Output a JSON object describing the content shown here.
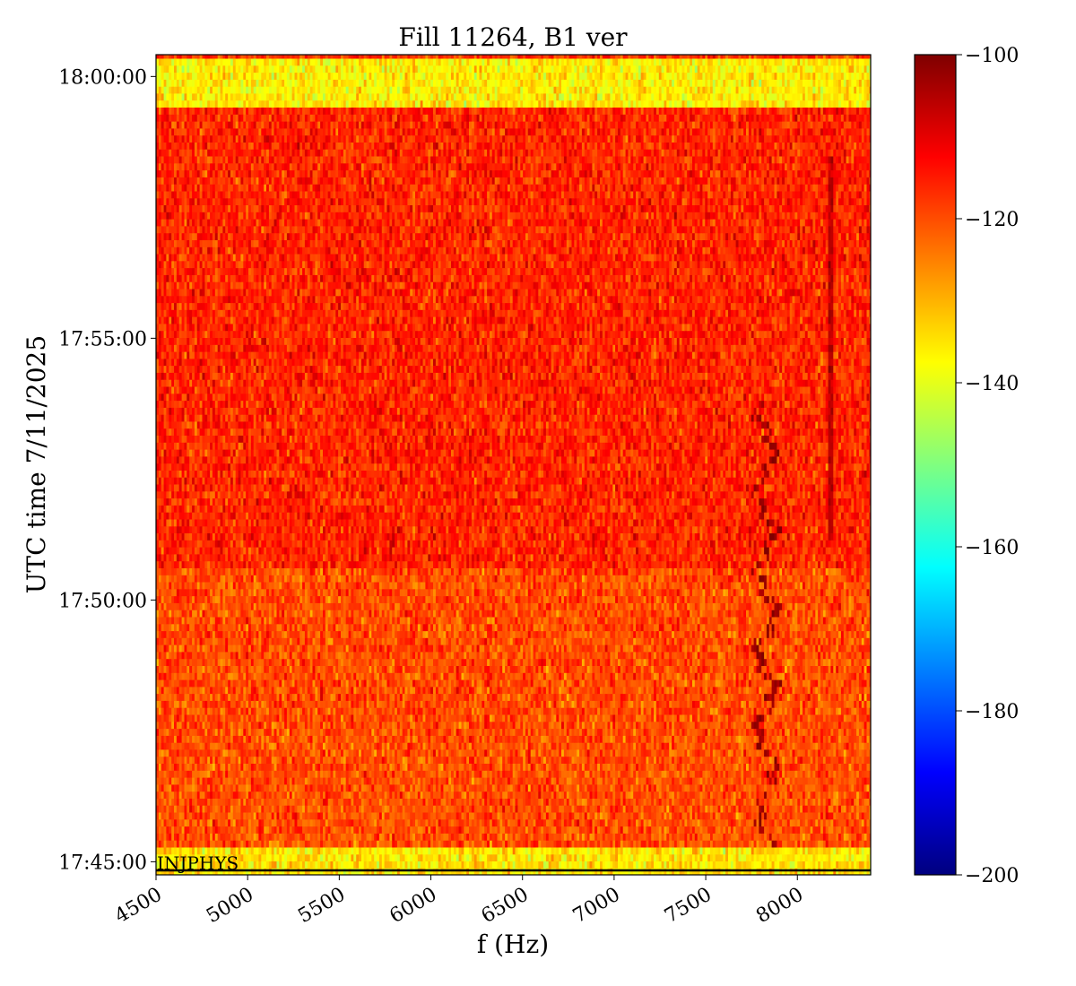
{
  "chart_data": {
    "type": "heatmap",
    "title": "Fill 11264, B1 ver",
    "xlabel": "f (Hz)",
    "ylabel": "UTC time 7/11/2025",
    "xlim": [
      4500,
      8400
    ],
    "ylim": [
      "17:44:45",
      "18:00:25"
    ],
    "x_ticks": [
      4500,
      5000,
      5500,
      6000,
      6500,
      7000,
      7500,
      8000
    ],
    "x_tick_labels": [
      "4500",
      "5000",
      "5500",
      "6000",
      "6500",
      "7000",
      "7500",
      "8000"
    ],
    "y_ticks": [
      "17:45:00",
      "17:50:00",
      "17:55:00",
      "18:00:00"
    ],
    "y_tick_labels": [
      "17:45:00",
      "17:50:00",
      "17:55:00",
      "18:00:00"
    ],
    "colorbar": {
      "colormap": "jet",
      "range": [
        -200,
        -100
      ],
      "ticks": [
        -100,
        -120,
        -140,
        -160,
        -180,
        -200
      ],
      "tick_labels": [
        "−100",
        "−120",
        "−140",
        "−160",
        "−180",
        "−200"
      ]
    },
    "annotations": [
      {
        "text": "INJPHYS",
        "at_time": "17:45:00",
        "at_f": 4500
      }
    ],
    "grid": false,
    "regions": [
      {
        "t_start": "17:44:45",
        "t_end": "17:45:15",
        "level_db": -135
      },
      {
        "t_start": "17:45:15",
        "t_end": "17:50:35",
        "level_db": -120
      },
      {
        "t_start": "17:50:35",
        "t_end": "17:59:25",
        "level_db": -116
      },
      {
        "t_start": "17:59:25",
        "t_end": "18:00:25",
        "level_db": -136
      }
    ],
    "features": [
      {
        "f_hz": 8180,
        "t_start": "17:51:10",
        "t_end": "17:58:30",
        "level_db": -106
      },
      {
        "f_hz_start": 7780,
        "f_hz_end": 7880,
        "t_start": "17:45:15",
        "t_end": "17:53:50",
        "level_db": -103
      }
    ]
  }
}
